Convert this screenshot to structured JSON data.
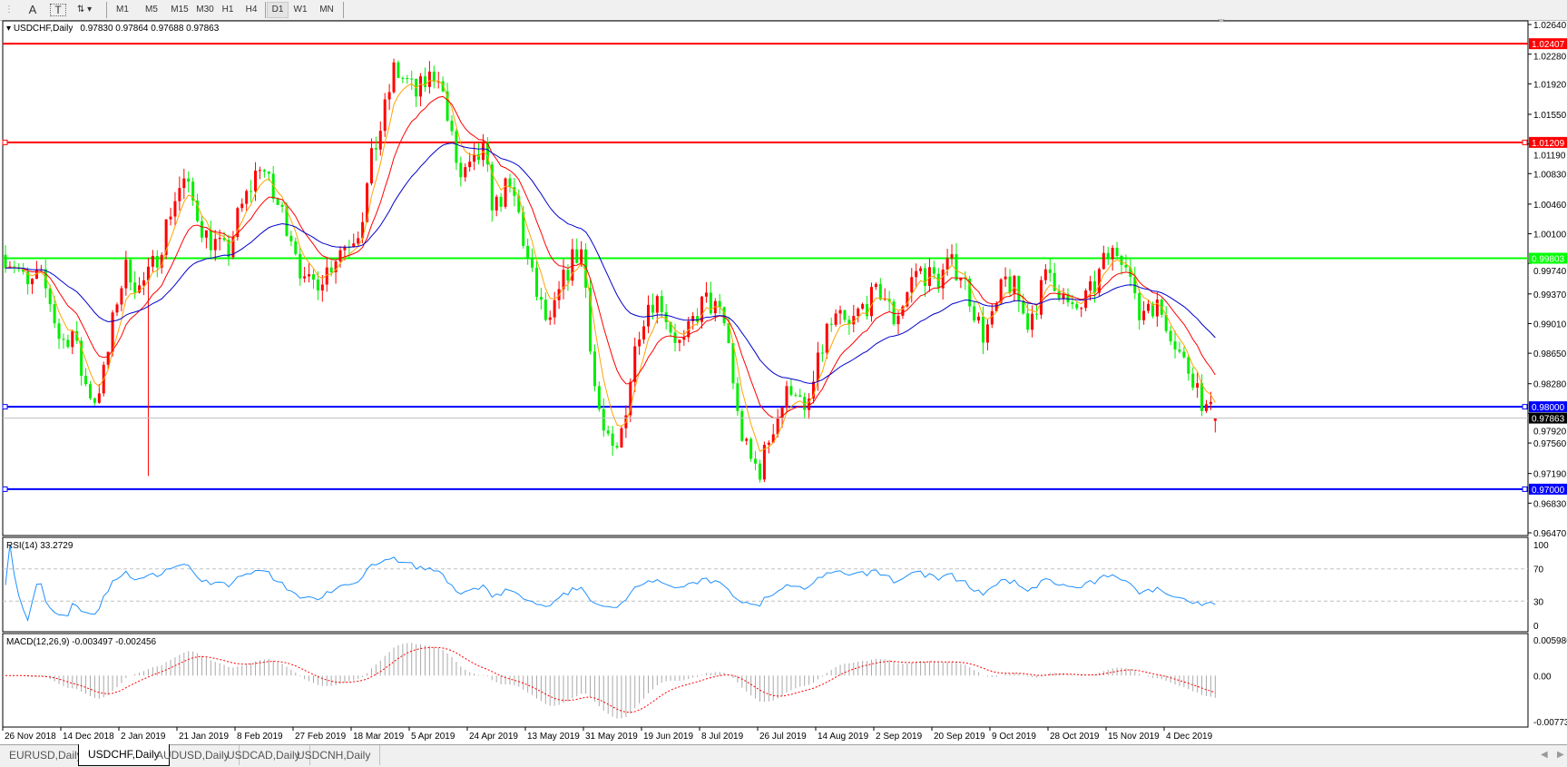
{
  "toolbar": {
    "tools": [
      {
        "icon": "text-icon",
        "label": "A"
      },
      {
        "icon": "text-label-icon",
        "label": "T"
      },
      {
        "icon": "arrows-icon",
        "label": ""
      }
    ],
    "timeframes": [
      "M1",
      "M5",
      "M15",
      "M30",
      "H1",
      "H4",
      "D1",
      "W1",
      "MN"
    ],
    "active_timeframe": "D1"
  },
  "chart": {
    "symbol_label": "USDCHF,Daily",
    "ohlc_text": "0.97830 0.97864 0.97688 0.97863",
    "colors": {
      "bull": "#ff0000",
      "bear": "#00ee00",
      "ma_fast": "#ffa500",
      "ma_mid": "#ff0000",
      "ma_slow": "#0000cc",
      "rsi": "#1e90ff",
      "macd_hist": "#a9a9a9",
      "macd_signal": "#ff0000"
    },
    "price_axis": [
      "1.02640",
      "1.02280",
      "1.01920",
      "1.01550",
      "1.01190",
      "1.00830",
      "1.00460",
      "1.00100",
      "0.99740",
      "0.99370",
      "0.99010",
      "0.98650",
      "0.98280",
      "0.97920",
      "0.97560",
      "0.97190",
      "0.96830",
      "0.96470"
    ],
    "levels": [
      {
        "price": "1.02407",
        "color": "#ff0000",
        "selected": false
      },
      {
        "price": "1.01209",
        "color": "#ff0000",
        "selected": true
      },
      {
        "price": "0.99803",
        "color": "#00ff00",
        "selected": false
      },
      {
        "price": "0.98000",
        "color": "#0000ff",
        "selected": true
      },
      {
        "price": "0.97000",
        "color": "#0000ff",
        "selected": true
      }
    ],
    "current_price": "0.97863",
    "last_bar": {
      "open": 0.9783,
      "high": 0.97864,
      "low": 0.97688,
      "close": 0.97863
    },
    "time_axis": [
      "26 Nov 2018",
      "14 Dec 2018",
      "2 Jan 2019",
      "21 Jan 2019",
      "8 Feb 2019",
      "27 Feb 2019",
      "18 Mar 2019",
      "5 Apr 2019",
      "24 Apr 2019",
      "13 May 2019",
      "31 May 2019",
      "19 Jun 2019",
      "8 Jul 2019",
      "26 Jul 2019",
      "14 Aug 2019",
      "2 Sep 2019",
      "20 Sep 2019",
      "9 Oct 2019",
      "28 Oct 2019",
      "15 Nov 2019",
      "4 Dec 2019"
    ]
  },
  "chart_data": {
    "type": "candlestick",
    "approx_closes": [
      0.99844,
      0.99723,
      0.99419,
      0.99601,
      0.99298,
      0.98752,
      0.98934,
      0.98328,
      0.98085,
      0.98449,
      0.99298,
      0.99723,
      0.99419,
      0.99601,
      0.99965,
      1.0045,
      1.00754,
      1.0045,
      1.00086,
      0.99965,
      0.99844,
      1.00329,
      1.00632,
      1.00996,
      1.00572,
      1.00329,
      1.00026,
      0.99419,
      0.99541,
      0.99662,
      0.99905,
      1.00026,
      1.00208,
      1.00996,
      1.01481,
      1.02088,
      1.01967,
      1.01785,
      1.01967,
      1.02088,
      1.0136,
      1.00754,
      1.00875,
      1.01117,
      1.0039,
      1.00632,
      1.00511,
      0.99783,
      0.99298,
      0.98934,
      0.99419,
      0.99783,
      0.99905,
      0.98328,
      0.976,
      0.97357,
      0.98085,
      0.98934,
      0.99298,
      0.99298,
      0.98934,
      0.98692,
      0.99055,
      0.99298,
      0.99177,
      0.98934,
      0.97842,
      0.97357,
      0.97236,
      0.97721,
      0.98024,
      0.98328,
      0.97842,
      0.98388,
      0.98934,
      0.99055,
      0.98934,
      0.99177,
      0.99298,
      0.99419,
      0.99055,
      0.99298,
      0.99662,
      0.99601,
      0.99541,
      0.99723,
      0.99662,
      0.99298,
      0.98873,
      0.99055,
      0.99541,
      0.99419,
      0.98995,
      0.99298,
      0.99662,
      0.99419,
      0.99116,
      0.99237,
      0.99419,
      0.99759,
      0.99905,
      0.99844,
      0.99055,
      0.99298,
      0.99177,
      0.98934,
      0.9857,
      0.98388,
      0.98,
      0.97863
    ],
    "ylim": [
      0.9647,
      1.0264
    ],
    "rsi": {
      "label": "RSI(14) 33.2729",
      "axis": [
        "100",
        "70",
        "30",
        "0"
      ],
      "levels": [
        70,
        30
      ]
    },
    "macd": {
      "label": "MACD(12,26,9) -0.003497 -0.002456",
      "axis": [
        "0.005986",
        "0.00",
        "-0.007737"
      ],
      "ylim": [
        -0.007737,
        0.005986
      ]
    }
  },
  "tabs": [
    "EURUSD,Daily",
    "USDCHF,Daily",
    "AUDUSD,Daily",
    "USDCAD,Daily",
    "USDCNH,Daily"
  ],
  "active_tab": "USDCHF,Daily"
}
